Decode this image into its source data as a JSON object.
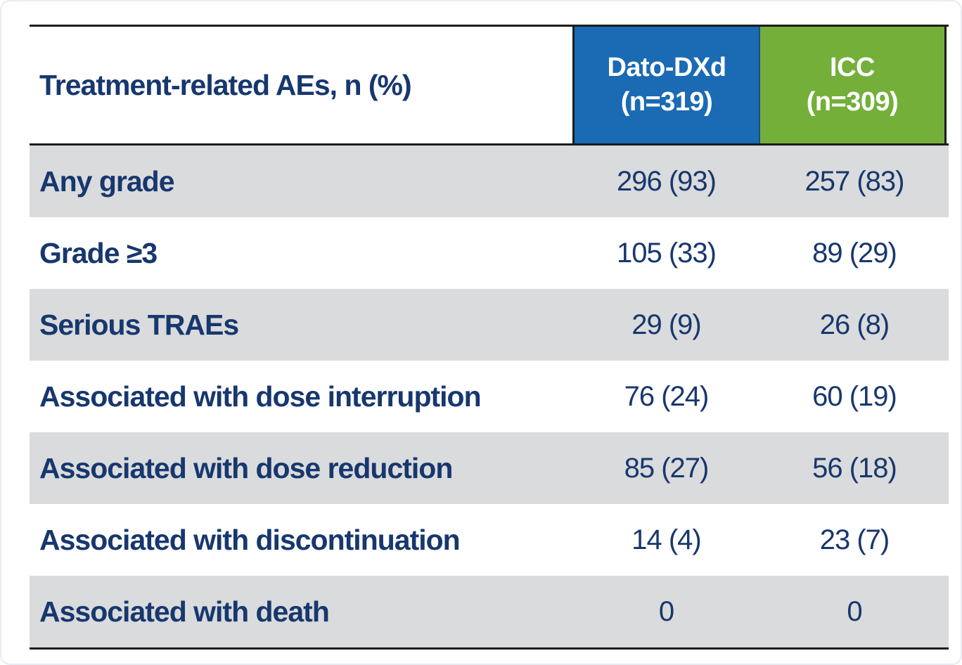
{
  "table": {
    "title_cell": "Treatment-related AEs, n (%)",
    "header": {
      "columns": [
        {
          "label": "Dato-DXd",
          "sub": "(n=319)",
          "color": "#1b6ab4"
        },
        {
          "label": "ICC",
          "sub": "(n=309)",
          "color": "#74af3a"
        }
      ]
    },
    "rows": [
      {
        "label": "Any grade",
        "dato": "296 (93)",
        "icc": "257 (83)"
      },
      {
        "label": "Grade ≥3",
        "dato": "105 (33)",
        "icc": "89 (29)"
      },
      {
        "label": "Serious TRAEs",
        "dato": "29 (9)",
        "icc": "26 (8)"
      },
      {
        "label": "Associated with dose interruption",
        "dato": "76 (24)",
        "icc": "60 (19)"
      },
      {
        "label": "Associated with dose reduction",
        "dato": "85 (27)",
        "icc": "56 (18)"
      },
      {
        "label": "Associated with discontinuation",
        "dato": "14 (4)",
        "icc": "23 (7)"
      },
      {
        "label": "Associated with death",
        "dato": "0",
        "icc": "0"
      }
    ]
  },
  "colors": {
    "dato_header_bg": "#1b6ab4",
    "icc_header_bg": "#74af3a",
    "text_navy": "#17376e",
    "striped_row_bg": "#dadbdc",
    "rule_black": "#1c1c1c"
  },
  "chart_data": {
    "type": "table",
    "title": "Treatment-related AEs, n (%)",
    "columns": [
      "Treatment-related AEs, n (%)",
      "Dato-DXd (n=319)",
      "ICC (n=309)"
    ],
    "rows": [
      [
        "Any grade",
        "296 (93)",
        "257 (83)"
      ],
      [
        "Grade ≥3",
        "105 (33)",
        "89 (29)"
      ],
      [
        "Serious TRAEs",
        "29 (9)",
        "26 (8)"
      ],
      [
        "Associated with dose interruption",
        "76 (24)",
        "60 (19)"
      ],
      [
        "Associated with dose reduction",
        "85 (27)",
        "56 (18)"
      ],
      [
        "Associated with discontinuation",
        "14 (4)",
        "23 (7)"
      ],
      [
        "Associated with death",
        "0",
        "0"
      ]
    ]
  }
}
